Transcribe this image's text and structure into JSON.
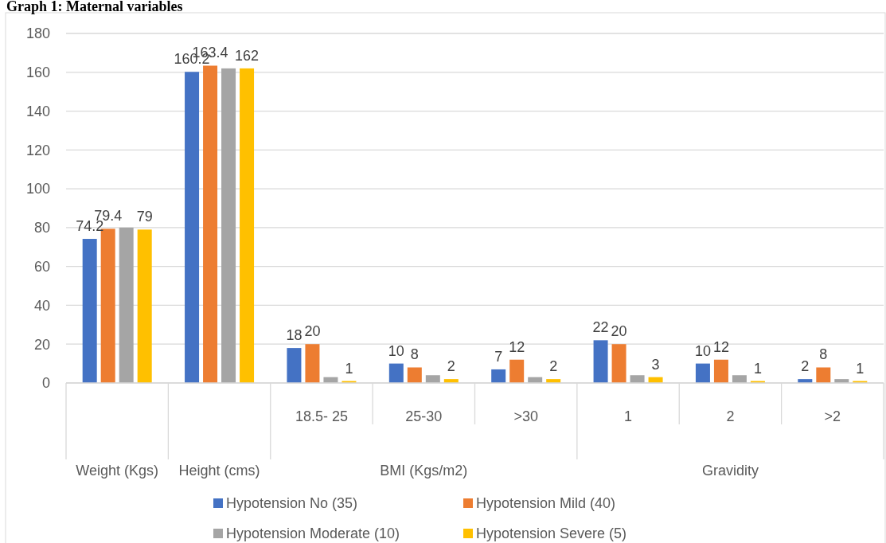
{
  "chart_data": {
    "type": "bar",
    "title": "Graph 1: Maternal variables",
    "categories": [
      null,
      null,
      "18.5- 25",
      "25-30",
      ">30",
      "1",
      "2",
      ">2"
    ],
    "annotations": [
      "Weight (Kgs)",
      "Height (cms)",
      "BMI (Kgs/m2)",
      "Gravidity"
    ],
    "series": [
      {
        "name": "Hypotension No (35)",
        "color": "#4472c4",
        "values": [
          74.2,
          160.2,
          18,
          10,
          7,
          22,
          10,
          2
        ],
        "value_labels": [
          "74.2",
          "160.2",
          "18",
          "10",
          "7",
          "22",
          "10",
          "2"
        ]
      },
      {
        "name": "Hypotension Mild (40)",
        "color": "#ed7d31",
        "values": [
          79.4,
          163.4,
          20,
          8,
          12,
          20,
          12,
          8
        ],
        "value_labels": [
          "79.4",
          "163.4",
          "20",
          "8",
          "12",
          "20",
          "12",
          "8"
        ]
      },
      {
        "name": "Hypotension Moderate (10)",
        "color": "#a5a5a5",
        "values": [
          80,
          162,
          3,
          4,
          3,
          4,
          4,
          2
        ],
        "value_labels": [
          null,
          null,
          null,
          null,
          null,
          null,
          null,
          null
        ]
      },
      {
        "name": "Hypotension Severe (5)",
        "color": "#ffc000",
        "values": [
          79,
          162,
          1,
          2,
          2,
          3,
          1,
          1
        ],
        "value_labels": [
          "79",
          "162",
          "1",
          "2",
          "2",
          "3",
          "1",
          "1"
        ]
      }
    ],
    "ylim": [
      0,
      180
    ],
    "yticks": [
      0,
      20,
      40,
      60,
      80,
      100,
      120,
      140,
      160,
      180
    ],
    "grid": "y",
    "legend": "bottom"
  }
}
